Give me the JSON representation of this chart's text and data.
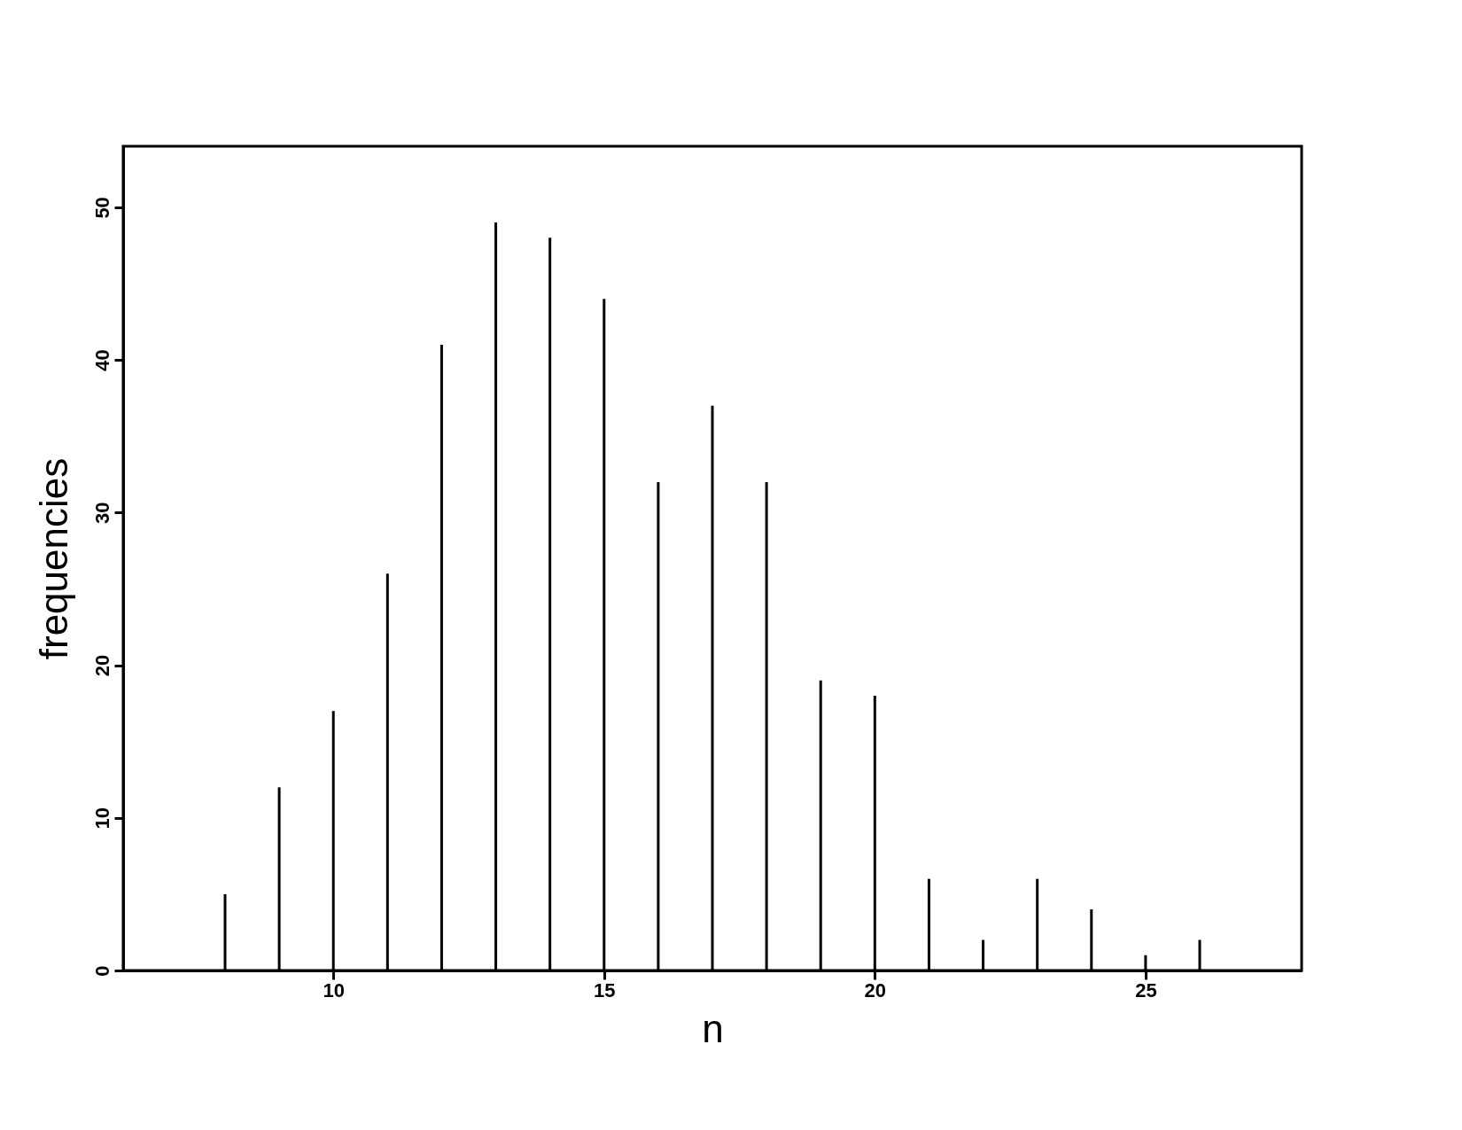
{
  "chart_data": {
    "type": "bar",
    "xlabel": "n",
    "ylabel": "frequencies",
    "x": [
      8,
      9,
      10,
      11,
      12,
      13,
      14,
      15,
      16,
      17,
      18,
      19,
      20,
      21,
      22,
      23,
      24,
      25,
      26
    ],
    "values": [
      5,
      12,
      17,
      26,
      41,
      49,
      48,
      44,
      32,
      37,
      32,
      19,
      18,
      6,
      2,
      6,
      4,
      1,
      2
    ],
    "color": "#000000",
    "xlim": [
      6.2,
      27.8
    ],
    "xticks": [
      10,
      15,
      20,
      25
    ],
    "ylim": [
      0,
      54
    ],
    "yticks": [
      0,
      10,
      20,
      30,
      40,
      50
    ],
    "grid": false
  }
}
